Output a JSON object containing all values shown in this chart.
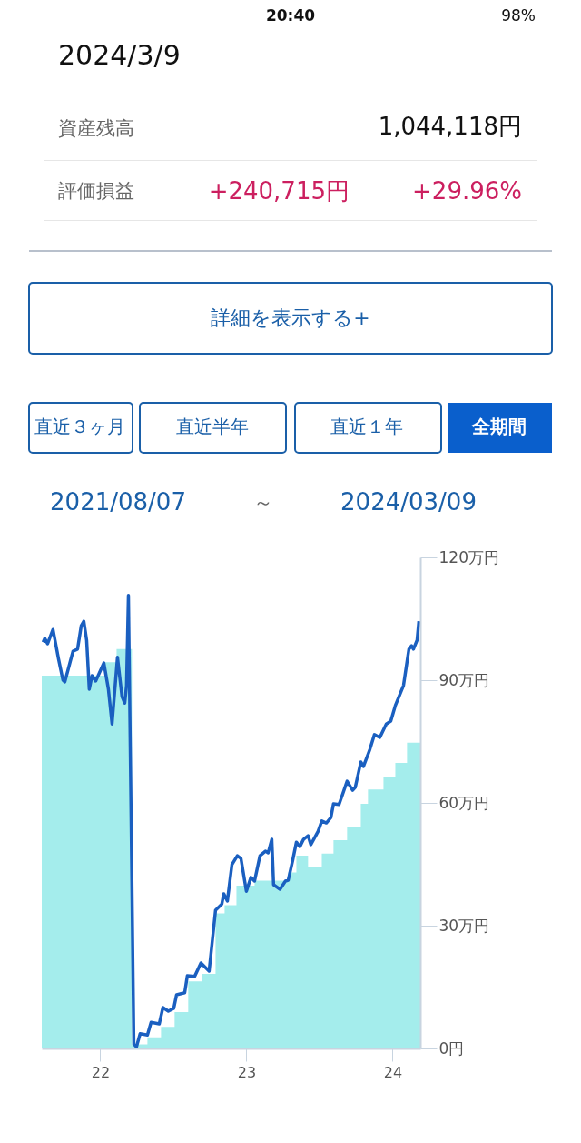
{
  "chart_data": {
    "type": "line",
    "title": "2024/3/9",
    "annotations": [
      "20:40",
      "98%",
      "資産残高",
      "1,044,118円",
      "評価損益",
      "+240,715円",
      "+29.96%",
      "詳細を表示する+",
      "直近３ヶ月",
      "直近半年",
      "直近１年",
      "全期間",
      "2021/08/07",
      "～",
      "2024/03/09"
    ],
    "series": [
      {
        "type": "area",
        "color": "#9aebea",
        "x": [
          2021.6,
          2022.031,
          2022.112,
          2022.217,
          2022.323,
          2022.416,
          2022.509,
          2022.602,
          2022.696,
          2022.789,
          2022.851,
          2022.932,
          2023.056,
          2023.286,
          2023.342,
          2023.422,
          2023.516,
          2023.596,
          2023.689,
          2023.783,
          2023.832,
          2023.938,
          2024.019,
          2024.099,
          2024.19
        ],
        "values": [
          91.1,
          94.4,
          97.6,
          1,
          2.7,
          5.3,
          8.9,
          16.4,
          18.2,
          33,
          35,
          39.8,
          41,
          43,
          47.1,
          44.4,
          47.6,
          50.9,
          54.2,
          59.8,
          63.3,
          66.4,
          69.8,
          74.7,
          74.7
        ]
      },
      {
        "type": "line",
        "color": "#1a5fc0",
        "x": [
          2021.609,
          2021.621,
          2021.64,
          2021.677,
          2021.714,
          2021.745,
          2021.758,
          2021.814,
          2021.845,
          2021.87,
          2021.888,
          2021.907,
          2021.925,
          2021.944,
          2021.969,
          2022.025,
          2022.056,
          2022.081,
          2022.118,
          2022.149,
          2022.168,
          2022.18,
          2022.193,
          2022.23,
          2022.248,
          2022.273,
          2022.323,
          2022.348,
          2022.404,
          2022.429,
          2022.466,
          2022.503,
          2022.522,
          2022.578,
          2022.596,
          2022.646,
          2022.689,
          2022.745,
          2022.789,
          2022.832,
          2022.845,
          2022.87,
          2022.901,
          2022.938,
          2022.963,
          2023.0,
          2023.031,
          2023.056,
          2023.093,
          2023.13,
          2023.149,
          2023.174,
          2023.186,
          2023.23,
          2023.267,
          2023.286,
          2023.317,
          2023.342,
          2023.366,
          2023.391,
          2023.422,
          2023.441,
          2023.491,
          2023.516,
          2023.547,
          2023.578,
          2023.596,
          2023.634,
          2023.689,
          2023.727,
          2023.745,
          2023.783,
          2023.801,
          2023.845,
          2023.876,
          2023.913,
          2023.957,
          2023.988,
          2024.019,
          2024.075,
          2024.112,
          2024.13,
          2024.143,
          2024.168,
          2024.18
        ],
        "values": [
          99.3,
          100.2,
          98.9,
          102.4,
          95.3,
          90.0,
          89.6,
          97.1,
          97.6,
          103.3,
          104.4,
          99.8,
          87.8,
          91.1,
          89.8,
          94.2,
          87.8,
          79.3,
          95.6,
          86.0,
          84.4,
          88.7,
          110.7,
          1.1,
          0.4,
          3.6,
          3.3,
          6.4,
          6.0,
          10.0,
          9.1,
          9.8,
          13.1,
          13.6,
          17.8,
          17.6,
          20.9,
          18.9,
          33.8,
          35.3,
          37.8,
          36.0,
          44.9,
          47.1,
          46.4,
          38.4,
          41.8,
          40.9,
          47.1,
          48.2,
          47.8,
          51.1,
          40.0,
          38.9,
          40.9,
          41.1,
          46.0,
          50.4,
          49.3,
          51.1,
          52.0,
          49.8,
          53.1,
          55.6,
          55.1,
          56.4,
          59.8,
          59.6,
          65.3,
          63.1,
          63.8,
          70.0,
          68.9,
          73.1,
          76.7,
          76.0,
          79.3,
          80.0,
          83.8,
          88.7,
          97.6,
          98.4,
          97.6,
          99.8,
          104.4
        ]
      }
    ],
    "xlim": [
      2021.6,
      2024.19
    ],
    "xticks": [
      {
        "value": 2022,
        "label": "22"
      },
      {
        "value": 2023,
        "label": "23"
      },
      {
        "value": 2024,
        "label": "24"
      }
    ],
    "ylim": [
      0,
      120
    ],
    "yticks": [
      {
        "value": 0,
        "label": "0円"
      },
      {
        "value": 30,
        "label": "30万円"
      },
      {
        "value": 60,
        "label": "60万円"
      },
      {
        "value": 90,
        "label": "90万円"
      },
      {
        "value": 120,
        "label": "120万円"
      }
    ],
    "grid": false,
    "legend": false
  }
}
